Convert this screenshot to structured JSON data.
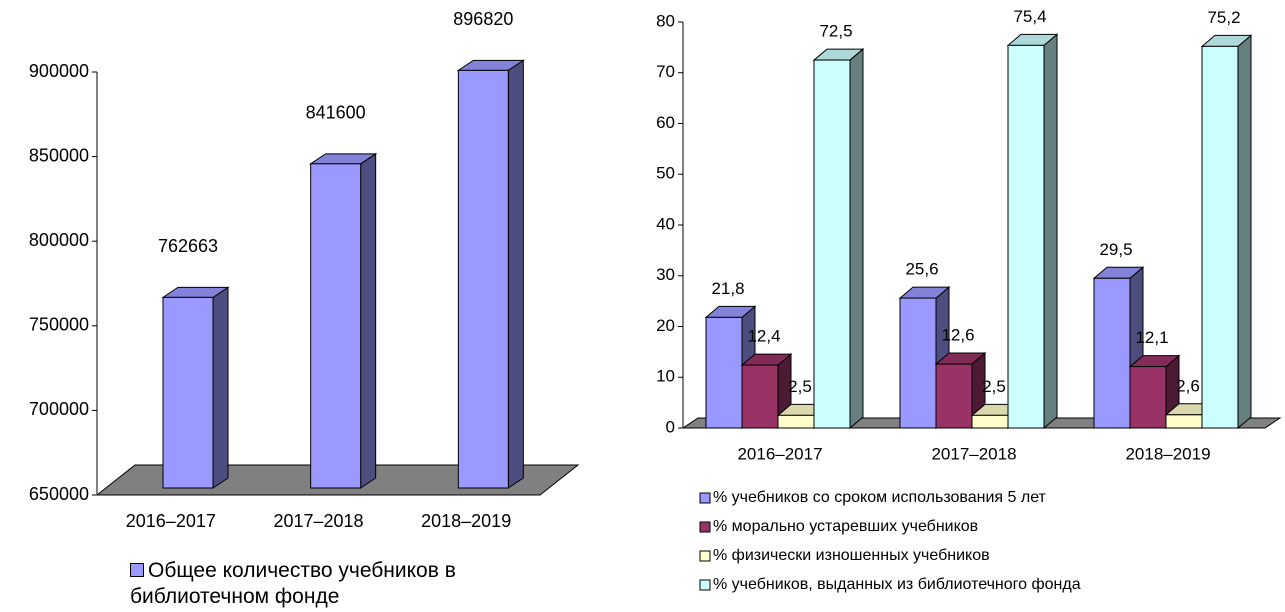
{
  "chart_data": [
    {
      "type": "bar",
      "categories": [
        "2016–2017",
        "2017–2018",
        "2018–2019"
      ],
      "series": [
        {
          "name": "Общее количество учебников в библиотечном фонде",
          "color": "#9999ff",
          "values": [
            762663,
            841600,
            896820
          ]
        }
      ],
      "ylim": [
        650000,
        900000
      ],
      "yticks": [
        650000,
        700000,
        750000,
        800000,
        850000,
        900000
      ]
    },
    {
      "type": "bar",
      "categories": [
        "2016–2017",
        "2017–2018",
        "2018–2019"
      ],
      "series": [
        {
          "name": "% учебников со сроком использования 5 лет",
          "color": "#9999ff",
          "values": [
            21.8,
            25.6,
            29.5
          ],
          "value_labels": [
            "21,8",
            "25,6",
            "29,5"
          ]
        },
        {
          "name": "% морально устаревших учебников",
          "color": "#993366",
          "values": [
            12.4,
            12.6,
            12.1
          ],
          "value_labels": [
            "12,4",
            "12,6",
            "12,1"
          ]
        },
        {
          "name": "% физически изношенных учебников",
          "color": "#ffffcc",
          "values": [
            2.5,
            2.5,
            2.6
          ],
          "value_labels": [
            "2,5",
            "2,5",
            "2,6"
          ]
        },
        {
          "name": "% учебников, выданных из библиотечного фонда",
          "color": "#ccffff",
          "values": [
            72.5,
            75.4,
            75.2
          ],
          "value_labels": [
            "72,5",
            "75,4",
            "75,2"
          ]
        }
      ],
      "ylim": [
        0,
        80
      ],
      "yticks": [
        0,
        10,
        20,
        30,
        40,
        50,
        60,
        70,
        80
      ]
    }
  ]
}
